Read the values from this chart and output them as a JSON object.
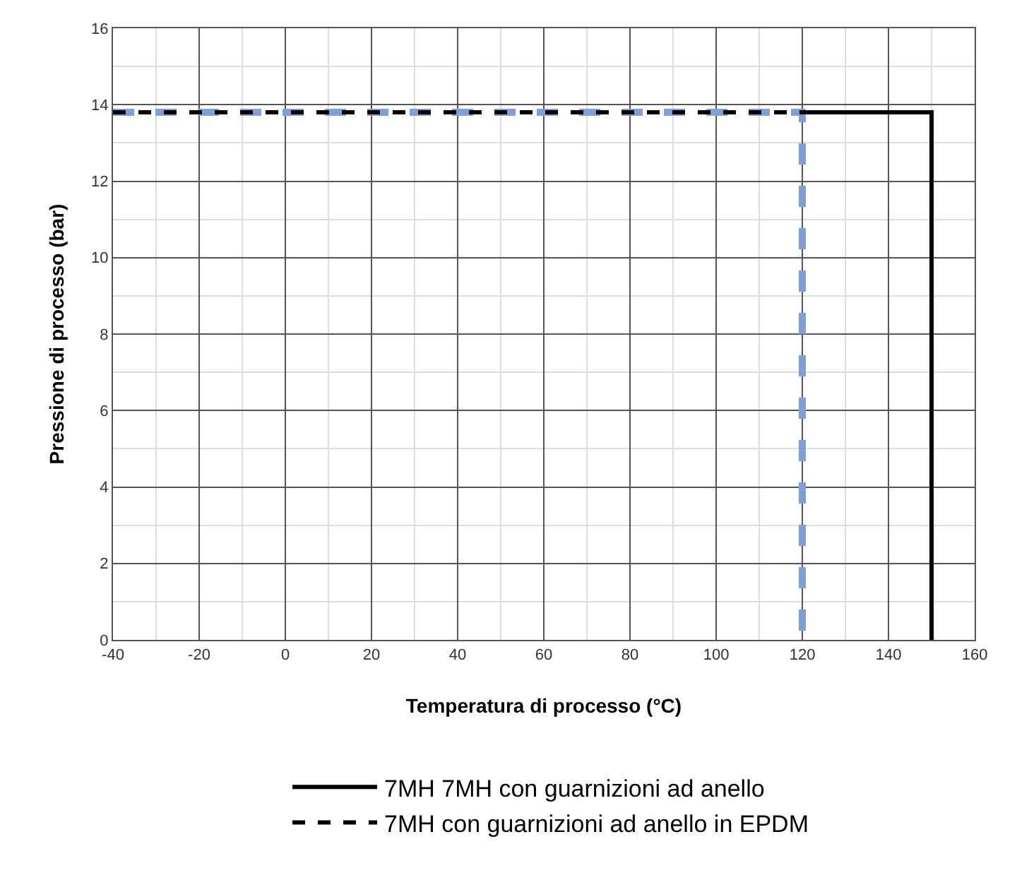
{
  "chart_data": {
    "type": "line",
    "xlabel": "Temperatura di processo (°C)",
    "ylabel": "Pressione di processo (bar)",
    "xlim": [
      -40,
      160
    ],
    "xticks": [
      -40,
      -20,
      0,
      20,
      40,
      60,
      80,
      100,
      120,
      140,
      160
    ],
    "ylim": [
      0,
      16
    ],
    "yticks": [
      0,
      2,
      4,
      6,
      8,
      10,
      12,
      14,
      16
    ],
    "grid": true,
    "legend": "bottom",
    "series": [
      {
        "name": "7MH 7MH con guarnizioni ad anello",
        "color": "#000000",
        "line_style": "solid",
        "x": [
          120,
          150,
          150
        ],
        "values": [
          13.8,
          13.8,
          0
        ]
      },
      {
        "name": "7MH con guarnizioni ad anello in EPDM",
        "color": "#000000",
        "line_style": "dashed",
        "x": [
          -40,
          120
        ],
        "values": [
          13.8,
          13.8
        ]
      },
      {
        "color": "#7f9fd6",
        "line_style": "dashed",
        "x": [
          -40,
          120,
          120
        ],
        "values": [
          13.8,
          13.8,
          0
        ]
      }
    ]
  }
}
